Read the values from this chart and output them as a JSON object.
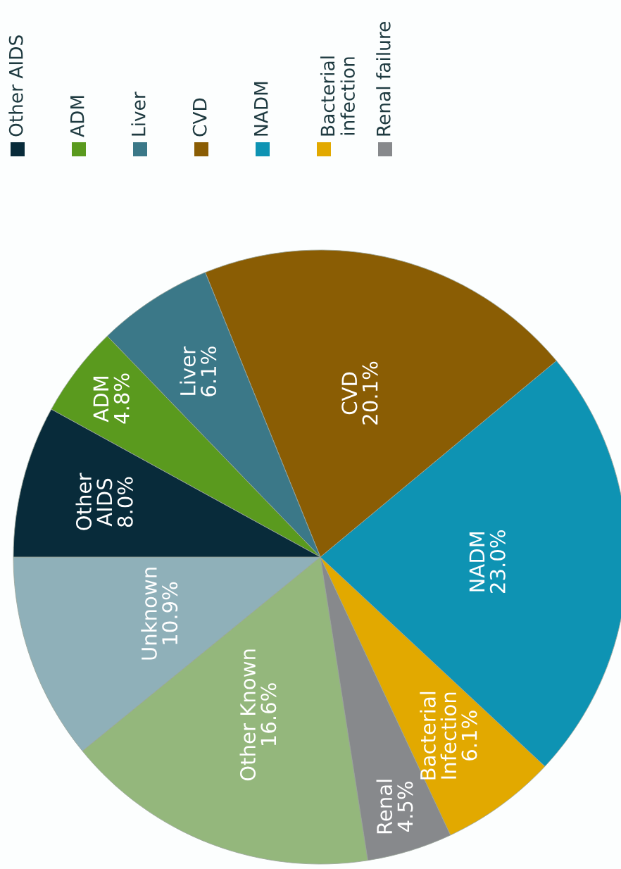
{
  "chart_data": {
    "type": "pie",
    "categories": [
      "Unknown",
      "Other Known",
      "Renal",
      "Bacterial\nInfection",
      "NADM",
      "CVD",
      "Liver",
      "ADM",
      "Other\nAIDS"
    ],
    "values": [
      10.9,
      16.6,
      4.5,
      6.1,
      23.0,
      20.1,
      6.1,
      4.8,
      8.0
    ],
    "value_labels": [
      "10.9%",
      "16.6%",
      "4.5%",
      "6.1%",
      "23.0%",
      "20.1%",
      "6.1%",
      "4.8%",
      "8.0%"
    ],
    "colors": [
      "#8fb0b9",
      "#94b77c",
      "#87898c",
      "#e2a900",
      "#0e93b3",
      "#8a5d04",
      "#3b7888",
      "#5a9a1e",
      "#082b3a"
    ],
    "annotations": [
      "Other AIDS",
      "ADM",
      "Liver",
      "CVD",
      "NADM",
      "Bacterial\ninfection",
      "Renal failure"
    ]
  }
}
